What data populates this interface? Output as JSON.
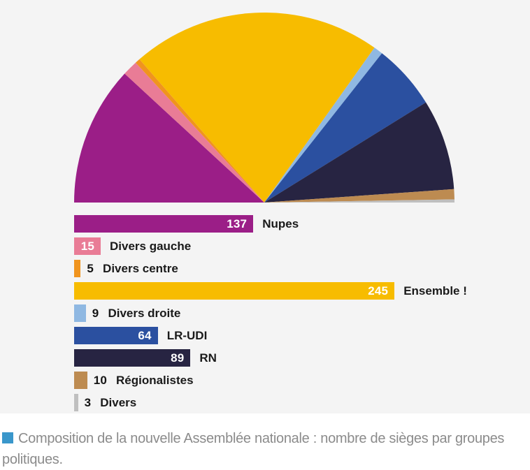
{
  "chart_data": {
    "type": "pie",
    "subtype": "semicircle-parliament",
    "background": "#F4F4F4",
    "legend_position": "below-as-bars",
    "series": [
      {
        "label": "Nupes",
        "value": 137,
        "color": "#9B1E87",
        "value_label_inside": true
      },
      {
        "label": "Divers gauche",
        "value": 15,
        "color": "#E97C96",
        "value_label_inside": true
      },
      {
        "label": "Divers centre",
        "value": 5,
        "color": "#F0941E",
        "value_label_inside": false
      },
      {
        "label": "Ensemble !",
        "value": 245,
        "color": "#F7BC00",
        "value_label_inside": true
      },
      {
        "label": "Divers droite",
        "value": 9,
        "color": "#8FB8E2",
        "value_label_inside": false
      },
      {
        "label": "LR-UDI",
        "value": 64,
        "color": "#2B50A0",
        "value_label_inside": true
      },
      {
        "label": "RN",
        "value": 89,
        "color": "#272442",
        "value_label_inside": true
      },
      {
        "label": "Régionalistes",
        "value": 10,
        "color": "#BD8B51",
        "value_label_inside": false
      },
      {
        "label": "Divers",
        "value": 3,
        "color": "#BFBFBF",
        "value_label_inside": false
      }
    ]
  },
  "caption": {
    "marker_color": "#3A97CB",
    "text": "Composition de la nouvelle Assemblée nationale : nombre de sièges par groupes politiques."
  }
}
